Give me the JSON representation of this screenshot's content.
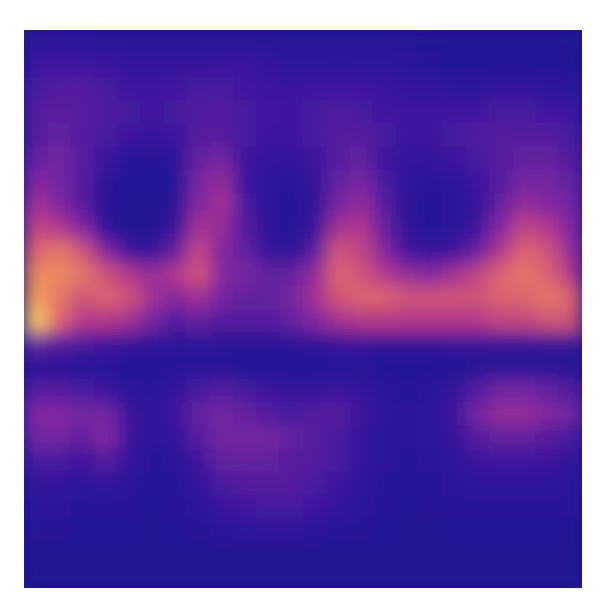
{
  "chart_data": {
    "type": "heatmap",
    "tick_labels": false,
    "zlim": [
      0,
      1
    ],
    "cells": [
      [
        0.12,
        0.12,
        0.12,
        0.1,
        0.1,
        0.1,
        0.1,
        0.1,
        0.1,
        0.1,
        0.08,
        0.08,
        0.08,
        0.08,
        0.08,
        0.08,
        0.06,
        0.05,
        0.04,
        0.04,
        0.04,
        0.04,
        0.04,
        0.04
      ],
      [
        0.2,
        0.22,
        0.2,
        0.18,
        0.15,
        0.15,
        0.15,
        0.15,
        0.18,
        0.18,
        0.15,
        0.12,
        0.12,
        0.12,
        0.12,
        0.12,
        0.1,
        0.08,
        0.05,
        0.05,
        0.05,
        0.05,
        0.05,
        0.05
      ],
      [
        0.25,
        0.28,
        0.3,
        0.25,
        0.2,
        0.2,
        0.22,
        0.25,
        0.25,
        0.22,
        0.2,
        0.18,
        0.2,
        0.22,
        0.2,
        0.18,
        0.15,
        0.15,
        0.12,
        0.12,
        0.15,
        0.15,
        0.12,
        0.1
      ],
      [
        0.3,
        0.32,
        0.3,
        0.28,
        0.25,
        0.22,
        0.25,
        0.28,
        0.3,
        0.25,
        0.22,
        0.2,
        0.25,
        0.28,
        0.25,
        0.22,
        0.2,
        0.2,
        0.2,
        0.22,
        0.25,
        0.25,
        0.22,
        0.2
      ],
      [
        0.3,
        0.35,
        0.3,
        0.25,
        0.2,
        0.15,
        0.2,
        0.3,
        0.3,
        0.25,
        0.2,
        0.2,
        0.25,
        0.3,
        0.3,
        0.25,
        0.2,
        0.2,
        0.25,
        0.28,
        0.3,
        0.3,
        0.3,
        0.25
      ],
      [
        0.35,
        0.4,
        0.3,
        0.2,
        0.08,
        0.06,
        0.1,
        0.35,
        0.4,
        0.2,
        0.15,
        0.15,
        0.2,
        0.3,
        0.35,
        0.2,
        0.15,
        0.15,
        0.2,
        0.25,
        0.3,
        0.35,
        0.35,
        0.3
      ],
      [
        0.45,
        0.4,
        0.3,
        0.1,
        0.05,
        0.05,
        0.08,
        0.4,
        0.5,
        0.2,
        0.12,
        0.1,
        0.15,
        0.35,
        0.4,
        0.25,
        0.12,
        0.1,
        0.12,
        0.2,
        0.3,
        0.4,
        0.4,
        0.35
      ],
      [
        0.55,
        0.45,
        0.3,
        0.08,
        0.04,
        0.04,
        0.1,
        0.45,
        0.55,
        0.25,
        0.1,
        0.08,
        0.12,
        0.4,
        0.5,
        0.3,
        0.1,
        0.08,
        0.1,
        0.15,
        0.35,
        0.5,
        0.45,
        0.4
      ],
      [
        0.65,
        0.6,
        0.45,
        0.1,
        0.04,
        0.04,
        0.15,
        0.55,
        0.5,
        0.3,
        0.1,
        0.08,
        0.15,
        0.55,
        0.6,
        0.35,
        0.12,
        0.08,
        0.1,
        0.2,
        0.45,
        0.65,
        0.6,
        0.45
      ],
      [
        0.75,
        0.8,
        0.7,
        0.45,
        0.2,
        0.15,
        0.35,
        0.65,
        0.45,
        0.35,
        0.15,
        0.12,
        0.3,
        0.7,
        0.65,
        0.45,
        0.2,
        0.15,
        0.2,
        0.35,
        0.6,
        0.75,
        0.7,
        0.5
      ],
      [
        0.85,
        0.85,
        0.8,
        0.7,
        0.6,
        0.5,
        0.6,
        0.7,
        0.45,
        0.4,
        0.35,
        0.35,
        0.5,
        0.75,
        0.7,
        0.6,
        0.5,
        0.45,
        0.55,
        0.65,
        0.75,
        0.8,
        0.75,
        0.6
      ],
      [
        0.9,
        0.8,
        0.7,
        0.75,
        0.7,
        0.55,
        0.45,
        0.55,
        0.4,
        0.35,
        0.35,
        0.4,
        0.55,
        0.7,
        0.75,
        0.75,
        0.7,
        0.7,
        0.7,
        0.7,
        0.75,
        0.75,
        0.8,
        0.75
      ],
      [
        1.0,
        0.75,
        0.6,
        0.6,
        0.55,
        0.4,
        0.3,
        0.35,
        0.3,
        0.3,
        0.3,
        0.35,
        0.45,
        0.55,
        0.6,
        0.6,
        0.6,
        0.6,
        0.6,
        0.6,
        0.65,
        0.65,
        0.7,
        0.7
      ],
      [
        0.35,
        0.3,
        0.25,
        0.2,
        0.15,
        0.12,
        0.1,
        0.1,
        0.1,
        0.1,
        0.1,
        0.1,
        0.12,
        0.15,
        0.15,
        0.12,
        0.12,
        0.12,
        0.15,
        0.15,
        0.15,
        0.15,
        0.15,
        0.15
      ],
      [
        0.1,
        0.08,
        0.08,
        0.06,
        0.05,
        0.05,
        0.08,
        0.08,
        0.06,
        0.05,
        0.05,
        0.05,
        0.05,
        0.06,
        0.06,
        0.05,
        0.05,
        0.05,
        0.05,
        0.06,
        0.06,
        0.06,
        0.06,
        0.06
      ],
      [
        0.3,
        0.3,
        0.25,
        0.2,
        0.12,
        0.1,
        0.15,
        0.25,
        0.3,
        0.25,
        0.2,
        0.15,
        0.15,
        0.2,
        0.15,
        0.1,
        0.08,
        0.1,
        0.15,
        0.3,
        0.4,
        0.4,
        0.35,
        0.3
      ],
      [
        0.45,
        0.45,
        0.4,
        0.4,
        0.2,
        0.12,
        0.2,
        0.35,
        0.4,
        0.35,
        0.3,
        0.25,
        0.3,
        0.3,
        0.2,
        0.12,
        0.1,
        0.12,
        0.2,
        0.4,
        0.5,
        0.5,
        0.45,
        0.4
      ],
      [
        0.4,
        0.4,
        0.35,
        0.45,
        0.2,
        0.1,
        0.15,
        0.3,
        0.4,
        0.4,
        0.4,
        0.35,
        0.3,
        0.25,
        0.15,
        0.1,
        0.1,
        0.12,
        0.15,
        0.3,
        0.35,
        0.35,
        0.3,
        0.25
      ],
      [
        0.25,
        0.25,
        0.2,
        0.3,
        0.15,
        0.08,
        0.1,
        0.2,
        0.35,
        0.35,
        0.35,
        0.3,
        0.3,
        0.25,
        0.15,
        0.1,
        0.08,
        0.1,
        0.12,
        0.2,
        0.2,
        0.2,
        0.2,
        0.15
      ],
      [
        0.15,
        0.15,
        0.12,
        0.15,
        0.1,
        0.06,
        0.08,
        0.15,
        0.25,
        0.3,
        0.3,
        0.3,
        0.25,
        0.2,
        0.12,
        0.08,
        0.06,
        0.08,
        0.1,
        0.12,
        0.12,
        0.12,
        0.12,
        0.1
      ],
      [
        0.1,
        0.1,
        0.08,
        0.08,
        0.06,
        0.05,
        0.06,
        0.1,
        0.18,
        0.22,
        0.25,
        0.25,
        0.2,
        0.15,
        0.1,
        0.06,
        0.05,
        0.06,
        0.08,
        0.08,
        0.08,
        0.08,
        0.08,
        0.06
      ],
      [
        0.06,
        0.06,
        0.05,
        0.05,
        0.05,
        0.04,
        0.05,
        0.06,
        0.1,
        0.12,
        0.12,
        0.12,
        0.1,
        0.08,
        0.06,
        0.05,
        0.04,
        0.04,
        0.05,
        0.05,
        0.05,
        0.05,
        0.05,
        0.05
      ],
      [
        0.04,
        0.04,
        0.04,
        0.04,
        0.04,
        0.04,
        0.04,
        0.04,
        0.04,
        0.04,
        0.04,
        0.04,
        0.04,
        0.04,
        0.04,
        0.04,
        0.04,
        0.04,
        0.04,
        0.04,
        0.04,
        0.04,
        0.04,
        0.04
      ],
      [
        0.04,
        0.04,
        0.04,
        0.04,
        0.04,
        0.04,
        0.04,
        0.04,
        0.04,
        0.04,
        0.04,
        0.04,
        0.04,
        0.04,
        0.04,
        0.04,
        0.04,
        0.04,
        0.04,
        0.04,
        0.04,
        0.04,
        0.04,
        0.04
      ]
    ]
  }
}
